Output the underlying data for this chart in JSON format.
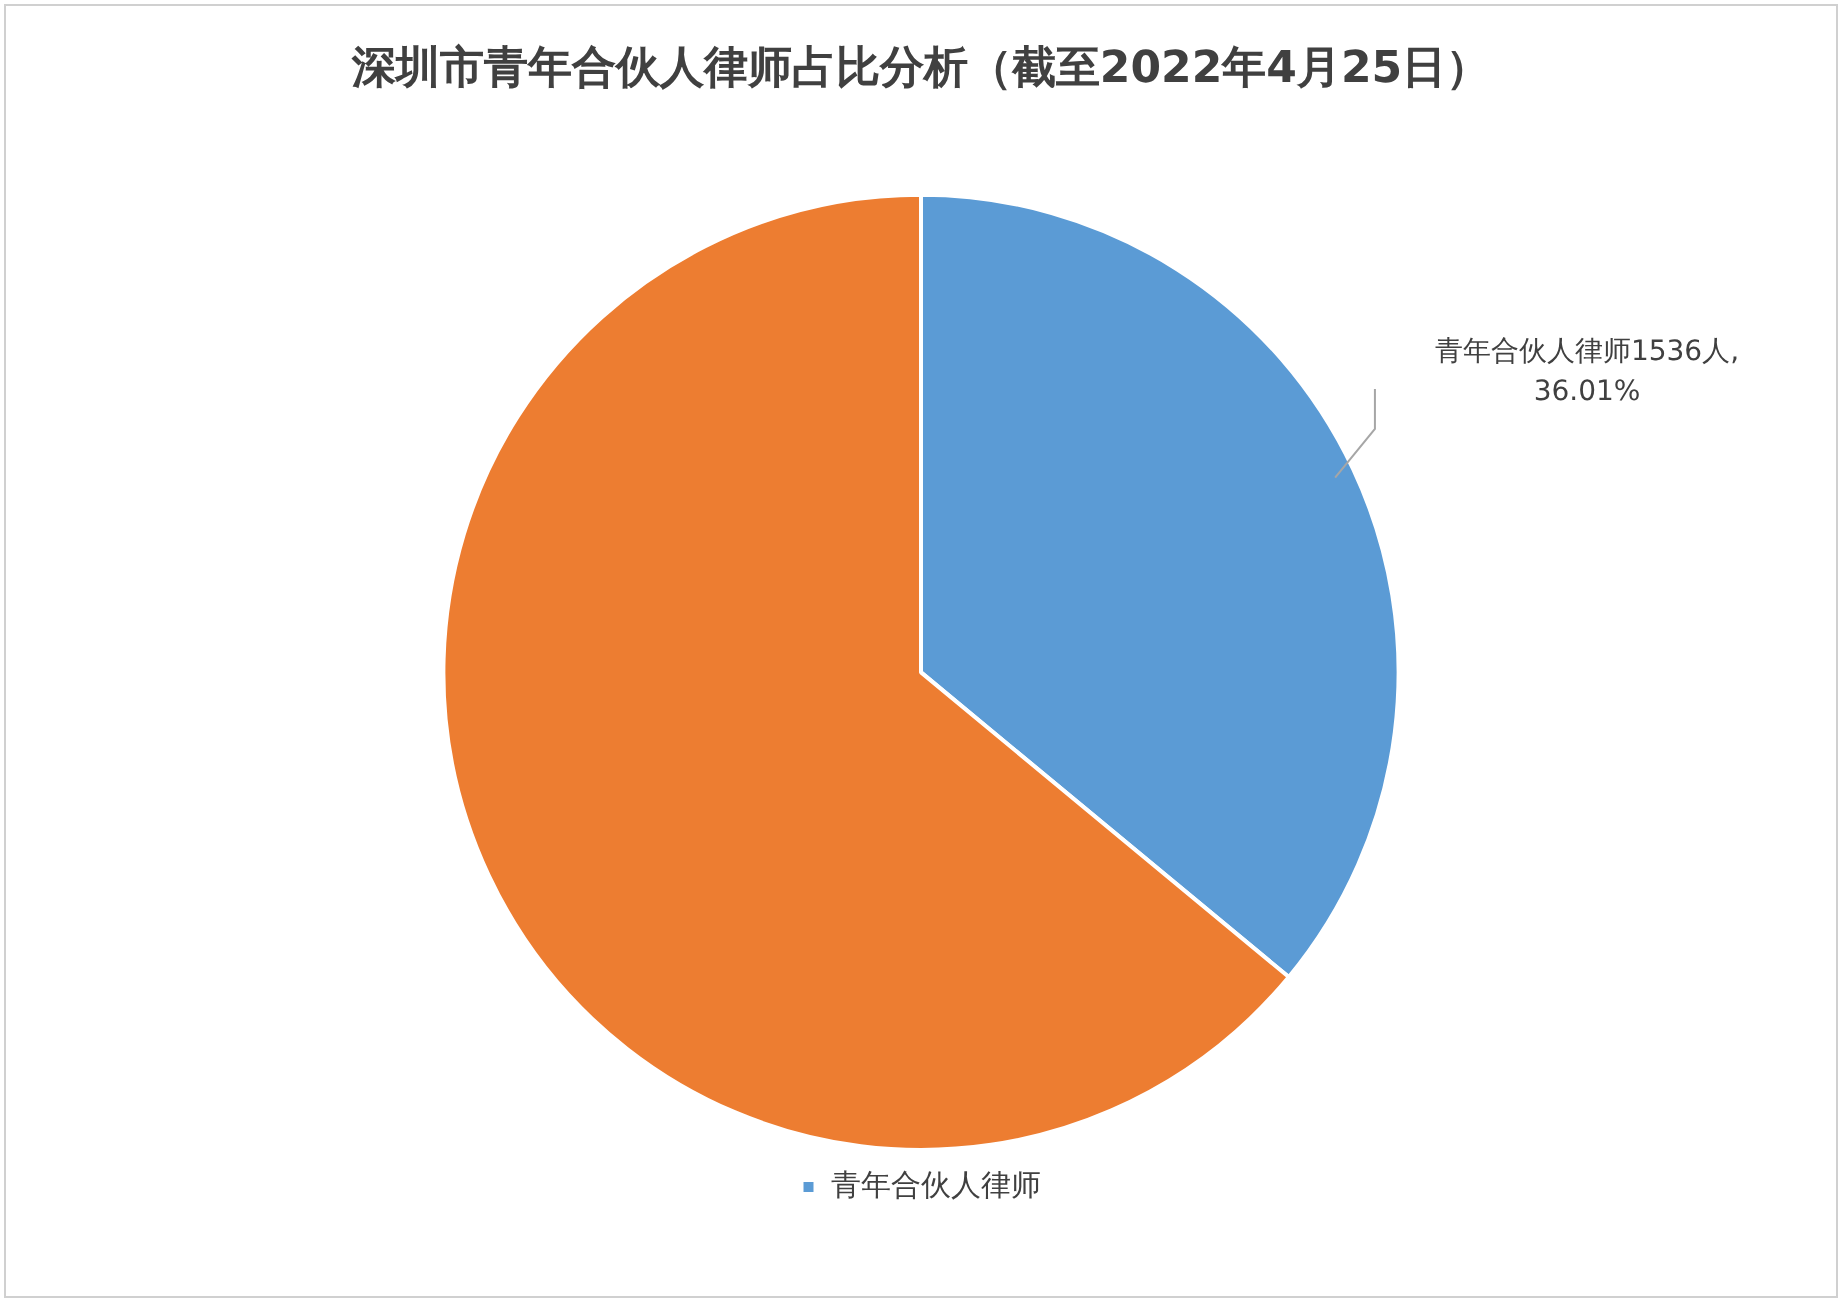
{
  "chart_data": {
    "type": "pie",
    "title": "深圳市青年合伙人律师占比分析（截至2022年4月25日）",
    "categories": [
      "青年合伙人律师",
      null
    ],
    "values": [
      36.01,
      63.99
    ],
    "colors": [
      "#5b9bd5",
      "#ed7d31"
    ],
    "value_labels": [
      "青年合伙人律师1536人,\n36.01%",
      null
    ],
    "legend": "bottom"
  }
}
